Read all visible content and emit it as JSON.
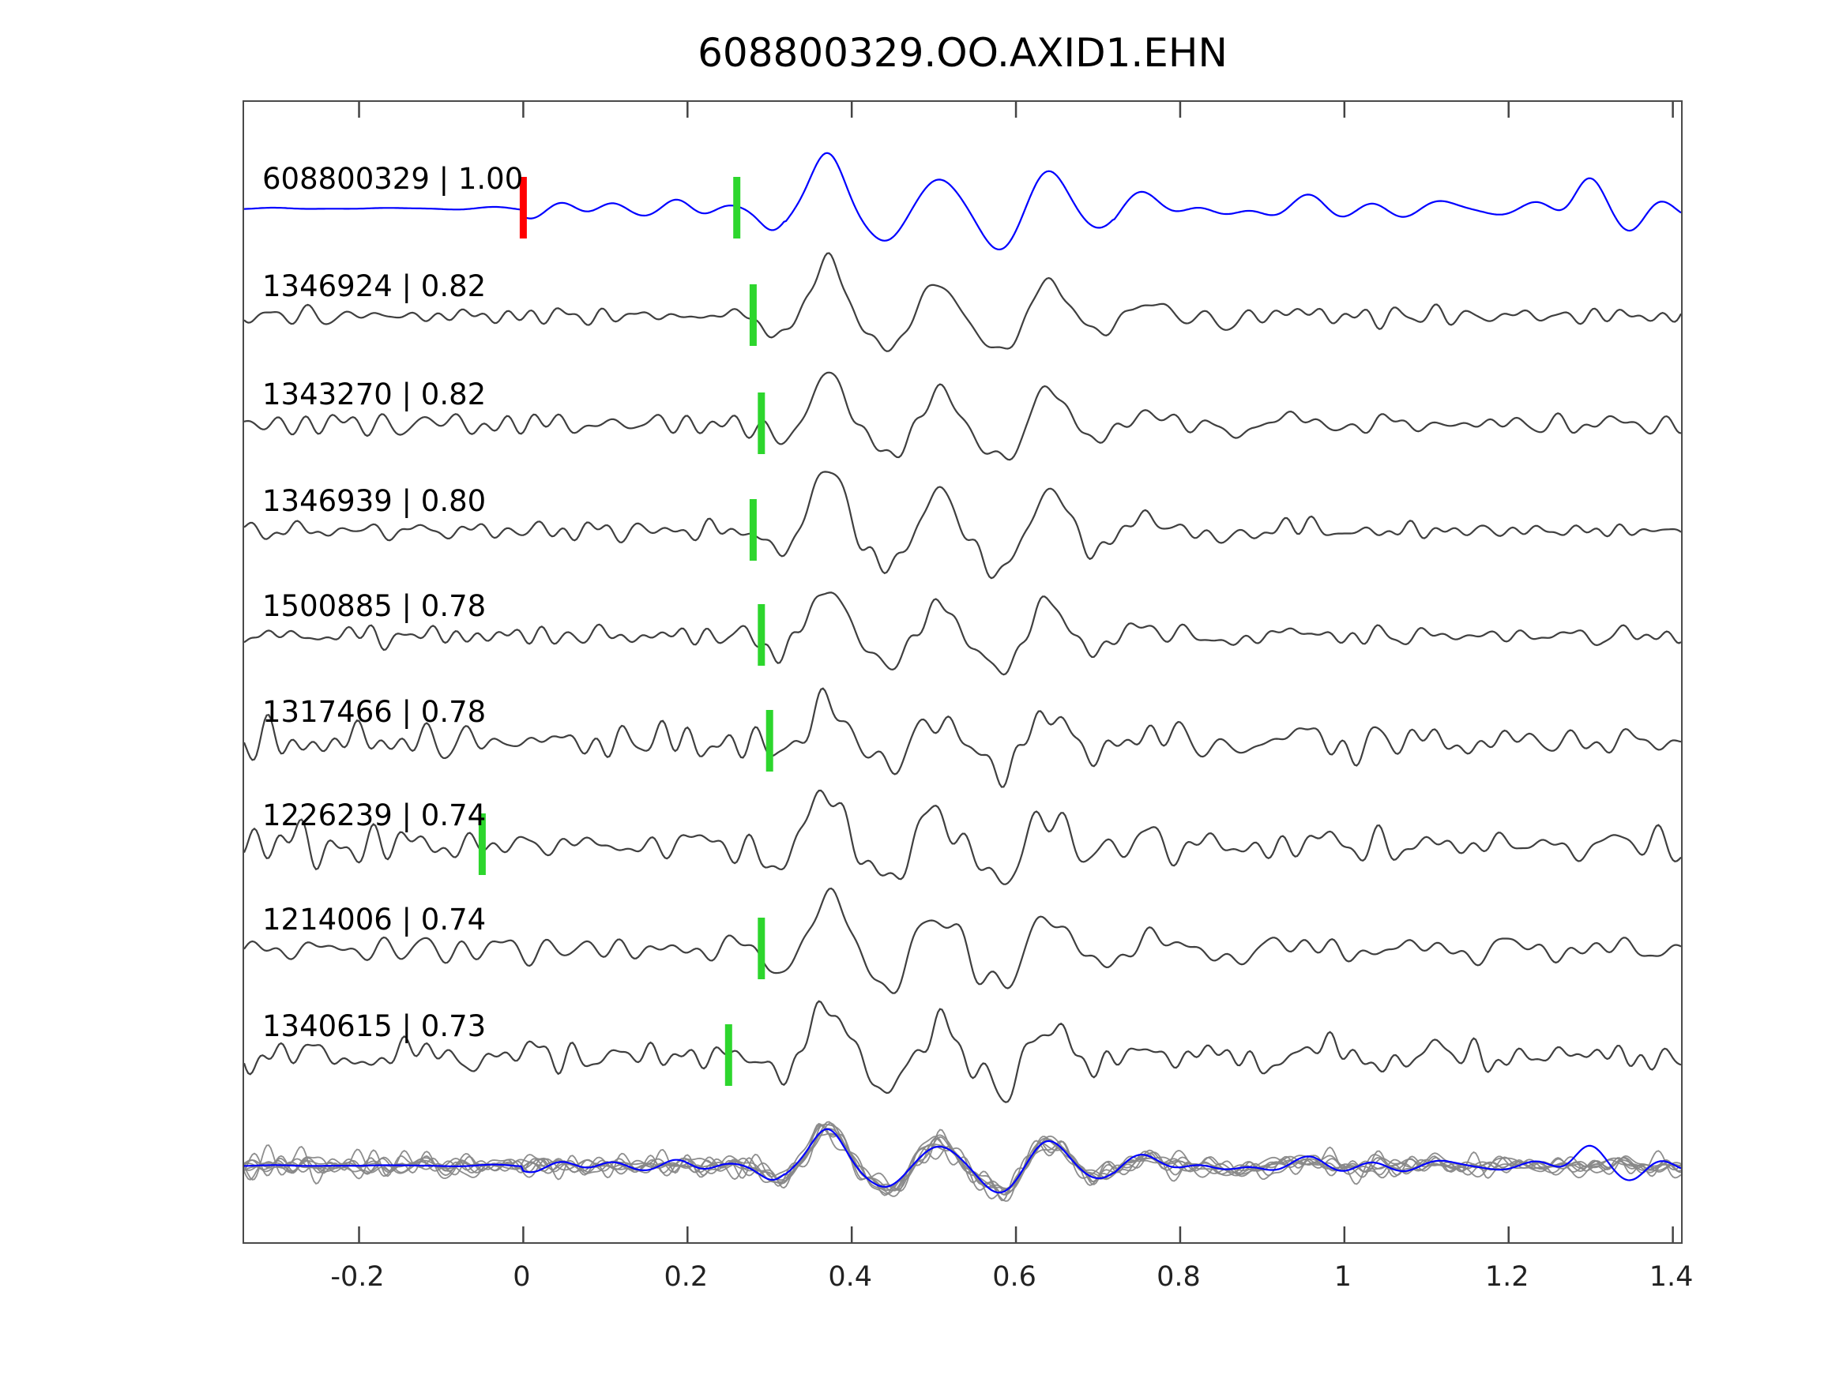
{
  "chart_data": {
    "type": "line",
    "title": "608800329.OO.AXID1.EHN",
    "xlabel": "",
    "ylabel": "",
    "xlim": [
      -0.34,
      1.41
    ],
    "grid": false,
    "legend": "none",
    "description": "Template-matching waveform comparison: reference seismic trace (blue) on top, eight matched detection traces (dark gray) below with event id and correlation coefficient labels, green pick markers on each trace, red reference pick marker at t=0, and an overlay panel of all traces at the bottom.",
    "xticks": [
      {
        "value": -0.2,
        "label": "-0.2"
      },
      {
        "value": 0,
        "label": "0"
      },
      {
        "value": 0.2,
        "label": "0.2"
      },
      {
        "value": 0.4,
        "label": "0.4"
      },
      {
        "value": 0.6,
        "label": "0.6"
      },
      {
        "value": 0.8,
        "label": "0.8"
      },
      {
        "value": 1,
        "label": "1"
      },
      {
        "value": 1.2,
        "label": "1.2"
      },
      {
        "value": 1.4,
        "label": "1.4"
      }
    ],
    "colors": {
      "reference_trace": "#0000ff",
      "match_trace": "#3f3f3f",
      "overlay_trace": "#888888",
      "pick_marker": "#2dd62d",
      "reference_pick_marker": "#ff0000",
      "axis": "#444444",
      "text": "#000000"
    },
    "traces": [
      {
        "event_id": "608800329",
        "correlation": 1.0,
        "label": "608800329 | 1.00",
        "role": "reference",
        "pick_time": 0.26,
        "reference_pick_time": 0.0,
        "seed": 11,
        "noise": 0.18,
        "amp": 70
      },
      {
        "event_id": "1346924",
        "correlation": 0.82,
        "label": "1346924 | 0.82",
        "role": "match",
        "pick_time": 0.28,
        "seed": 21,
        "noise": 0.22,
        "amp": 66
      },
      {
        "event_id": "1343270",
        "correlation": 0.82,
        "label": "1343270 | 0.82",
        "role": "match",
        "pick_time": 0.29,
        "seed": 32,
        "noise": 0.28,
        "amp": 64
      },
      {
        "event_id": "1346939",
        "correlation": 0.8,
        "label": "1346939 | 0.80",
        "role": "match",
        "pick_time": 0.28,
        "seed": 43,
        "noise": 0.24,
        "amp": 66
      },
      {
        "event_id": "1500885",
        "correlation": 0.78,
        "label": "1500885 | 0.78",
        "role": "match",
        "pick_time": 0.29,
        "seed": 54,
        "noise": 0.3,
        "amp": 62
      },
      {
        "event_id": "1317466",
        "correlation": 0.78,
        "label": "1317466 | 0.78",
        "role": "match",
        "pick_time": 0.3,
        "seed": 65,
        "noise": 0.46,
        "amp": 60
      },
      {
        "event_id": "1226239",
        "correlation": 0.74,
        "label": "1226239 | 0.74",
        "role": "match",
        "pick_time": -0.05,
        "seed": 76,
        "noise": 0.52,
        "amp": 62
      },
      {
        "event_id": "1214006",
        "correlation": 0.74,
        "label": "1214006 | 0.74",
        "role": "match",
        "pick_time": 0.29,
        "seed": 87,
        "noise": 0.34,
        "amp": 66
      },
      {
        "event_id": "1340615",
        "correlation": 0.73,
        "label": "1340615 | 0.73",
        "role": "match",
        "pick_time": 0.25,
        "seed": 98,
        "noise": 0.44,
        "amp": 60
      }
    ],
    "overlay": {
      "includes": "all_traces",
      "reference_color": "#0000ff",
      "match_color": "#888888"
    },
    "signal_features": [
      {
        "t": 0.305,
        "a": -0.28,
        "f": 9,
        "s": 0.02
      },
      {
        "t": 0.37,
        "a": 1.0,
        "f": 7,
        "s": 0.03
      },
      {
        "t": 0.445,
        "a": -0.55,
        "f": 7,
        "s": 0.03
      },
      {
        "t": 0.505,
        "a": 0.48,
        "f": 7,
        "s": 0.028
      },
      {
        "t": 0.578,
        "a": -0.62,
        "f": 6,
        "s": 0.035
      },
      {
        "t": 0.64,
        "a": 0.55,
        "f": 7,
        "s": 0.03
      },
      {
        "t": 0.7,
        "a": -0.18,
        "f": 8,
        "s": 0.03
      },
      {
        "t": 0.76,
        "a": 0.22,
        "f": 8,
        "s": 0.04
      },
      {
        "t": 0.86,
        "a": -0.12,
        "f": 8,
        "s": 0.04
      },
      {
        "t": 0.95,
        "a": 0.1,
        "f": 8,
        "s": 0.05
      }
    ],
    "reference_extra_features": [
      {
        "t": 0.105,
        "a": 0.14,
        "f": 12,
        "s": 0.04
      },
      {
        "t": 0.19,
        "a": 0.12,
        "f": 13,
        "s": 0.035
      },
      {
        "t": 1.295,
        "a": 0.5,
        "f": 7,
        "s": 0.022
      },
      {
        "t": 1.35,
        "a": -0.3,
        "f": 7,
        "s": 0.025
      }
    ]
  }
}
